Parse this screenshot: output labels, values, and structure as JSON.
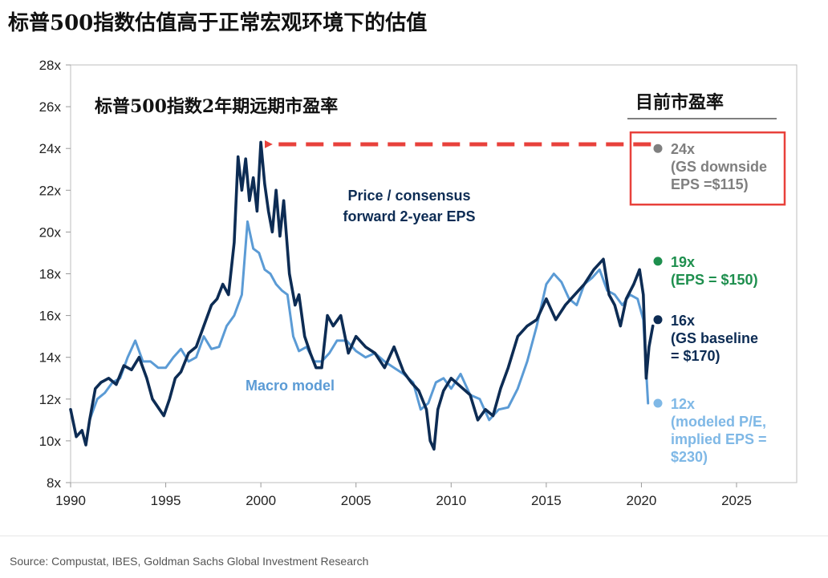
{
  "header": {
    "title": "标普500指数估值高于正常宏观环境下的估值"
  },
  "source": "Source: Compustat, IBES, Goldman Sachs Global Investment Research",
  "chart_data": {
    "type": "line",
    "title": "标普500指数2年期远期市盈率",
    "xlabel": "",
    "ylabel": "",
    "xlim": [
      1990,
      2027
    ],
    "ylim": [
      8,
      28
    ],
    "xticks": [
      1990,
      1995,
      2000,
      2005,
      2010,
      2015,
      2020,
      2025
    ],
    "yticks": [
      "8x",
      "10x",
      "12x",
      "14x",
      "16x",
      "18x",
      "20x",
      "22x",
      "24x",
      "26x",
      "28x"
    ],
    "colors": {
      "price_pe": "#0d2c54",
      "macro": "#5b9bd5",
      "green": "#1e8f4e",
      "grey": "#7f7f7f",
      "red": "#e8413b"
    },
    "series": [
      {
        "name": "Price / consensus forward 2-year EPS",
        "label_lines": [
          "Price / consensus",
          "forward 2-year EPS"
        ],
        "x": [
          1990.0,
          1990.3,
          1990.6,
          1990.8,
          1991.0,
          1991.3,
          1991.6,
          1992.0,
          1992.4,
          1992.8,
          1993.2,
          1993.6,
          1994.0,
          1994.3,
          1994.6,
          1994.9,
          1995.2,
          1995.5,
          1995.8,
          1996.2,
          1996.6,
          1997.0,
          1997.4,
          1997.7,
          1998.0,
          1998.3,
          1998.6,
          1998.8,
          1999.0,
          1999.2,
          1999.4,
          1999.6,
          1999.8,
          2000.0,
          2000.2,
          2000.4,
          2000.6,
          2000.8,
          2001.0,
          2001.2,
          2001.5,
          2001.8,
          2002.0,
          2002.3,
          2002.6,
          2002.9,
          2003.2,
          2003.5,
          2003.8,
          2004.2,
          2004.6,
          2005.0,
          2005.5,
          2006.0,
          2006.5,
          2007.0,
          2007.5,
          2007.9,
          2008.3,
          2008.7,
          2008.9,
          2009.1,
          2009.3,
          2009.6,
          2010.0,
          2010.5,
          2011.0,
          2011.4,
          2011.8,
          2012.2,
          2012.6,
          2013.0,
          2013.5,
          2014.0,
          2014.5,
          2015.0,
          2015.5,
          2016.0,
          2016.5,
          2017.0,
          2017.5,
          2018.0,
          2018.3,
          2018.6,
          2018.9,
          2019.2,
          2019.6,
          2019.9,
          2020.1,
          2020.25,
          2020.4,
          2020.6
        ],
        "values": [
          11.5,
          10.2,
          10.5,
          9.8,
          11.0,
          12.5,
          12.8,
          13.0,
          12.7,
          13.6,
          13.4,
          14.0,
          13.0,
          12.0,
          11.6,
          11.2,
          12.0,
          13.0,
          13.3,
          14.2,
          14.5,
          15.5,
          16.5,
          16.8,
          17.5,
          17.0,
          19.5,
          23.6,
          22.0,
          23.5,
          21.5,
          22.6,
          21.0,
          24.3,
          22.3,
          21.0,
          20.0,
          22.0,
          19.8,
          21.5,
          18.0,
          16.5,
          17.0,
          15.0,
          14.2,
          13.5,
          13.5,
          16.0,
          15.5,
          16.0,
          14.2,
          15.0,
          14.5,
          14.2,
          13.5,
          14.5,
          13.3,
          12.8,
          12.4,
          11.5,
          10.0,
          9.6,
          11.5,
          12.4,
          13.0,
          12.6,
          12.2,
          11.0,
          11.5,
          11.2,
          12.5,
          13.5,
          15.0,
          15.5,
          15.8,
          16.8,
          15.8,
          16.5,
          17.0,
          17.5,
          18.2,
          18.7,
          17.0,
          16.5,
          15.5,
          16.8,
          17.5,
          18.2,
          17.0,
          13.0,
          14.5,
          15.5
        ]
      },
      {
        "name": "Macro model",
        "x": [
          1991.0,
          1991.4,
          1991.8,
          1992.2,
          1992.6,
          1993.0,
          1993.4,
          1993.8,
          1994.2,
          1994.6,
          1995.0,
          1995.4,
          1995.8,
          1996.2,
          1996.6,
          1997.0,
          1997.4,
          1997.8,
          1998.2,
          1998.6,
          1999.0,
          1999.3,
          1999.6,
          1999.9,
          2000.2,
          2000.5,
          2000.8,
          2001.1,
          2001.4,
          2001.7,
          2002.0,
          2002.4,
          2002.8,
          2003.2,
          2003.6,
          2004.0,
          2004.5,
          2005.0,
          2005.5,
          2006.0,
          2006.5,
          2007.0,
          2007.5,
          2008.0,
          2008.4,
          2008.8,
          2009.2,
          2009.6,
          2010.0,
          2010.5,
          2011.0,
          2011.5,
          2012.0,
          2012.5,
          2013.0,
          2013.5,
          2014.0,
          2014.5,
          2015.0,
          2015.4,
          2015.8,
          2016.2,
          2016.6,
          2017.0,
          2017.4,
          2017.8,
          2018.2,
          2018.6,
          2019.0,
          2019.4,
          2019.8,
          2020.1,
          2020.35
        ],
        "values": [
          11.0,
          12.0,
          12.3,
          12.8,
          13.0,
          14.0,
          14.8,
          13.8,
          13.8,
          13.5,
          13.5,
          14.0,
          14.4,
          13.8,
          14.0,
          15.0,
          14.4,
          14.5,
          15.5,
          16.0,
          17.0,
          20.5,
          19.2,
          19.0,
          18.2,
          18.0,
          17.5,
          17.2,
          17.0,
          15.0,
          14.3,
          14.5,
          13.8,
          13.8,
          14.2,
          14.8,
          14.8,
          14.3,
          14.0,
          14.2,
          13.8,
          13.5,
          13.2,
          12.8,
          11.5,
          11.8,
          12.8,
          13.0,
          12.5,
          13.2,
          12.2,
          12.0,
          11.0,
          11.5,
          11.6,
          12.5,
          13.8,
          15.5,
          17.5,
          18.0,
          17.6,
          16.8,
          16.5,
          17.5,
          17.8,
          18.2,
          17.2,
          17.0,
          16.5,
          17.0,
          16.8,
          15.8,
          11.8
        ]
      }
    ],
    "reference": {
      "from_x": 2020.5,
      "to_x": 2000.2,
      "y": 24.2,
      "style": "dashed-arrow"
    },
    "annotations": {
      "current_pe_label": "目前市盈率",
      "macro_label": "Macro model",
      "scenarios": [
        {
          "value": 24,
          "lines": [
            "24x",
            "(GS downside",
            "EPS =$115)"
          ],
          "color": "grey",
          "boxed": true
        },
        {
          "value": 18.6,
          "lines": [
            "19x",
            "(EPS = $150)"
          ],
          "color": "green"
        },
        {
          "value": 15.8,
          "lines": [
            "16x",
            "(GS baseline",
            "= $170)"
          ],
          "color": "navy"
        },
        {
          "value": 11.8,
          "lines": [
            "12x",
            "(modeled P/E,",
            "implied EPS =",
            "$230)"
          ],
          "color": "lightblue"
        }
      ]
    }
  }
}
